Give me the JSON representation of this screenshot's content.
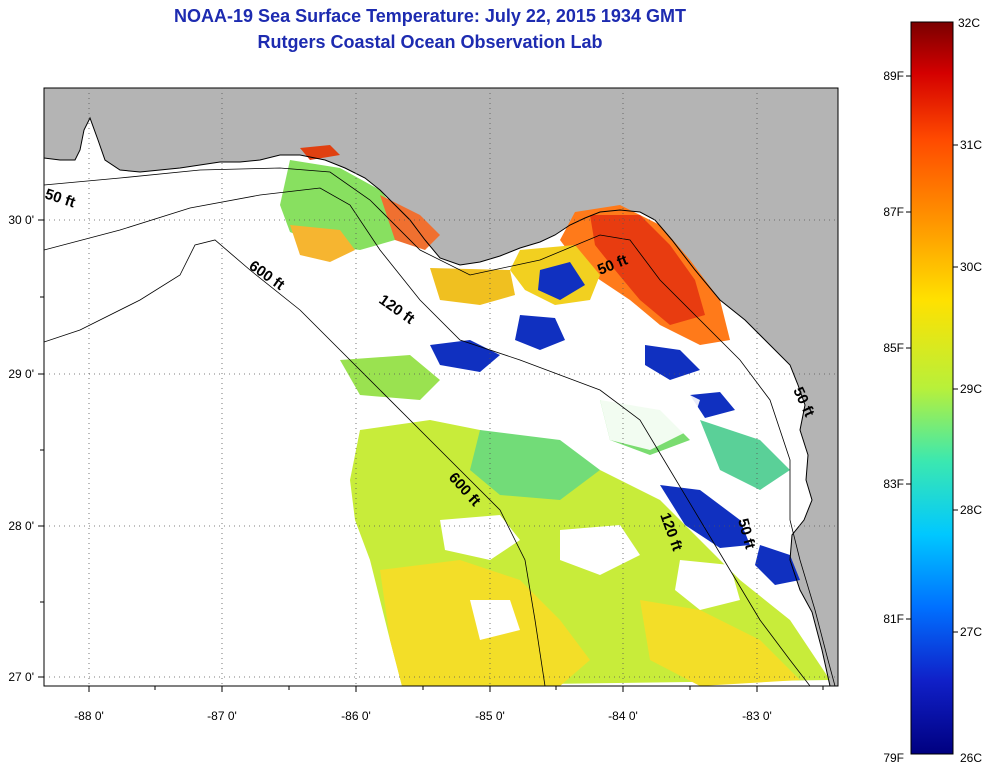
{
  "header": {
    "title": "NOAA-19 Sea Surface Temperature:  July 22, 2015 1934 GMT",
    "subtitle": "Rutgers Coastal Ocean Observation Lab"
  },
  "axes": {
    "x_ticks": [
      "-88 0'",
      "-87 0'",
      "-86 0'",
      "-85 0'",
      "-84 0'",
      "-83 0'"
    ],
    "y_ticks": [
      "30 0'",
      "29 0'",
      "28 0'",
      "27 0'"
    ]
  },
  "contours": {
    "fifty_ft_a": "50 ft",
    "fifty_ft_b": "50 ft",
    "fifty_ft_c": "50 ft",
    "fifty_ft_d": "50 ft",
    "one_twenty_ft_a": "120 ft",
    "one_twenty_ft_b": "120 ft",
    "six_hundred_ft_a": "600 ft",
    "six_hundred_ft_b": "600 ft"
  },
  "colorbar": {
    "celsius": [
      "32C",
      "31C",
      "30C",
      "29C",
      "28C",
      "27C",
      "26C"
    ],
    "fahrenheit": [
      "89F",
      "87F",
      "85F",
      "83F",
      "81F",
      "79F"
    ],
    "colors": [
      "#7a0000",
      "#d40000",
      "#ff4a00",
      "#ff9a00",
      "#ffe100",
      "#b8f03a",
      "#3be8b0",
      "#00c8ff",
      "#0070ff",
      "#1020c8",
      "#000080"
    ]
  },
  "legend_colors": {
    "land": "#b4b4b4",
    "cloud": "#ffffff",
    "title": "#1d2bb0"
  }
}
